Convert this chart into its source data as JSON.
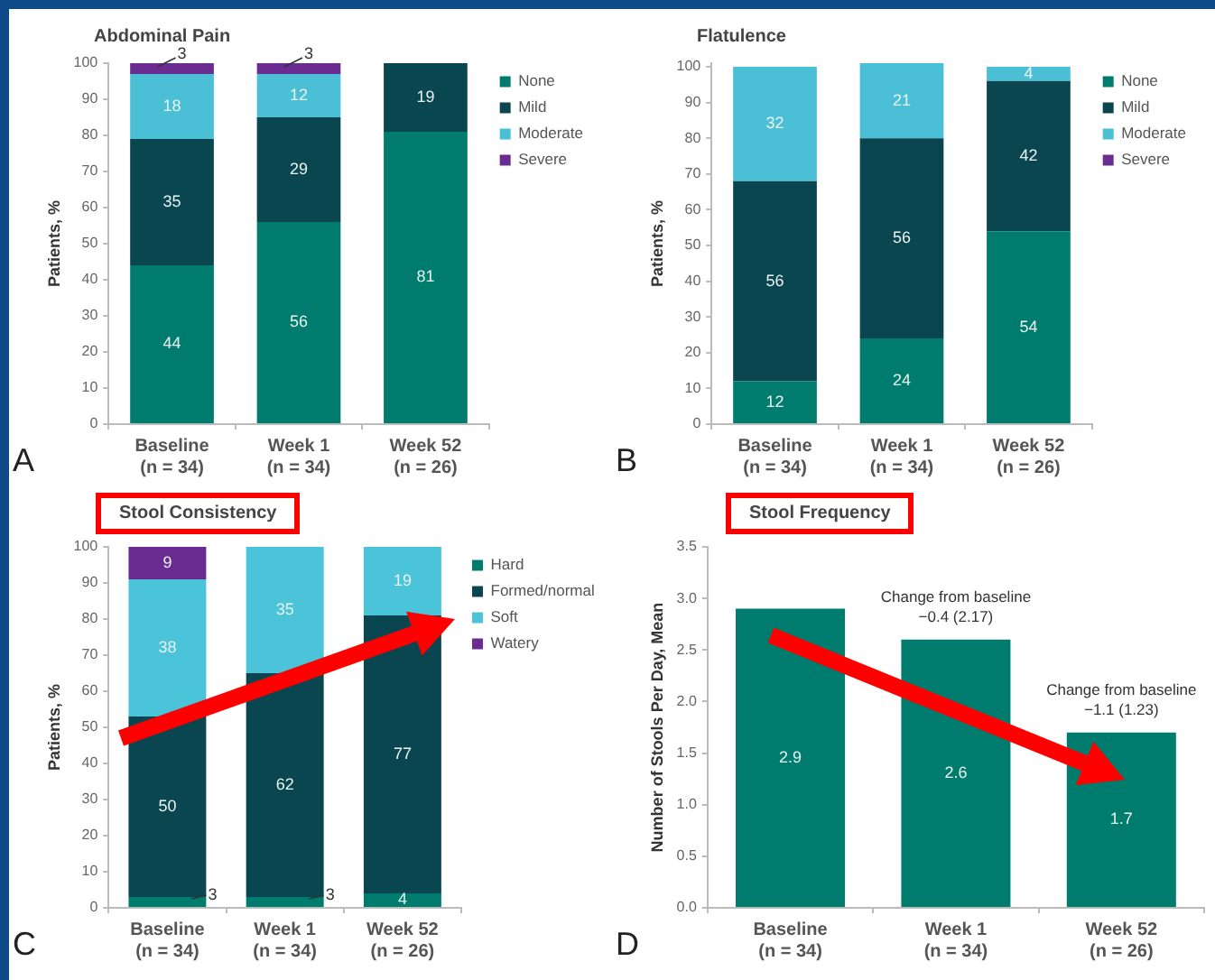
{
  "chart_data": [
    {
      "type": "bar",
      "title": "Abdominal Pain",
      "ylabel": "Patients, %",
      "categories": [
        "Baseline\n(n = 34)",
        "Week 1\n(n = 34)",
        "Week 52\n(n = 26)"
      ],
      "stacked": true,
      "ylim": [
        0,
        100
      ],
      "yticks": [
        0,
        10,
        20,
        30,
        40,
        50,
        60,
        70,
        80,
        90,
        100
      ],
      "grid": false,
      "legend": "top right",
      "annotations": [
        {
          "text": "3",
          "x": "Baseline\n(n = 34)",
          "y": 100
        },
        {
          "text": "3",
          "x": "Week 1\n(n = 34)",
          "y": 100
        },
        "A"
      ],
      "series": [
        {
          "name": "None",
          "color": "#007c6e",
          "values": [
            44,
            56,
            81
          ],
          "value_labels": [
            "44",
            "56",
            "81"
          ]
        },
        {
          "name": "Mild",
          "color": "#0a4650",
          "values": [
            35,
            29,
            19
          ],
          "value_labels": [
            "35",
            "29",
            "19"
          ]
        },
        {
          "name": "Moderate",
          "color": "#4bbfd6",
          "values": [
            18,
            12,
            null
          ],
          "value_labels": [
            "18",
            "12",
            null
          ]
        },
        {
          "name": "Severe",
          "color": "#6a2c91",
          "values": [
            3,
            3,
            null
          ],
          "value_labels": [
            null,
            null,
            null
          ]
        }
      ]
    },
    {
      "type": "bar",
      "title": "Flatulence",
      "ylabel": "Patients, %",
      "categories": [
        "Baseline\n(n = 34)",
        "Week 1\n(n = 34)",
        "Week 52\n(n = 26)"
      ],
      "stacked": true,
      "ylim": [
        0,
        101
      ],
      "yticks": [
        0,
        10,
        20,
        30,
        40,
        50,
        60,
        70,
        80,
        90,
        100
      ],
      "grid": false,
      "legend": "top right",
      "data_labels": true,
      "annotations": [
        "B"
      ],
      "series": [
        {
          "name": "None",
          "color": "#007c6e",
          "values": [
            12,
            24,
            54
          ]
        },
        {
          "name": "Mild",
          "color": "#0a4650",
          "values": [
            56,
            56,
            42
          ]
        },
        {
          "name": "Moderate",
          "color": "#4bbfd6",
          "values": [
            32,
            21,
            4
          ]
        },
        {
          "name": "Severe",
          "color": "#6a2c91",
          "values": [
            null,
            null,
            null
          ]
        }
      ]
    },
    {
      "type": "bar",
      "title": "Stool Consistency",
      "ylabel": "Patients, %",
      "categories": [
        "Baseline\n(n = 34)",
        "Week 1\n(n = 34)",
        "Week 52\n(n = 26)"
      ],
      "stacked": true,
      "ylim": [
        0,
        100
      ],
      "yticks": [
        0,
        10,
        20,
        30,
        40,
        50,
        60,
        70,
        80,
        90,
        100
      ],
      "grid": false,
      "legend": "top right",
      "annotations": [
        {
          "text": "3",
          "x": "Baseline\n(n = 34)",
          "y": 3
        },
        {
          "text": "3",
          "x": "Week 1\n(n = 34)",
          "y": 3
        },
        "C"
      ],
      "series": [
        {
          "name": "Hard",
          "color": "#007c6e",
          "values": [
            3,
            3,
            4
          ],
          "value_labels": [
            null,
            null,
            "4"
          ]
        },
        {
          "name": "Formed/normal",
          "color": "#0a4650",
          "values": [
            50,
            62,
            77
          ],
          "value_labels": [
            "50",
            "62",
            "77"
          ]
        },
        {
          "name": "Soft",
          "color": "#4bc3d9",
          "values": [
            38,
            35,
            19
          ],
          "value_labels": [
            "38",
            "35",
            "19"
          ]
        },
        {
          "name": "Watery",
          "color": "#6a2c91",
          "values": [
            9,
            null,
            null
          ],
          "value_labels": [
            "9",
            null,
            null
          ]
        }
      ]
    },
    {
      "type": "bar",
      "title": "Stool Frequency",
      "ylabel": "Number of Stools Per Day, Mean",
      "categories": [
        "Baseline\n(n = 34)",
        "Week 1\n(n = 34)",
        "Week 52\n(n = 26)"
      ],
      "values": [
        2.9,
        2.6,
        1.7
      ],
      "color": "#007c6e",
      "ylim": [
        0,
        3.5
      ],
      "yticks": [
        {
          "value": 0,
          "label": "0.0"
        },
        0.5,
        {
          "value": 1,
          "label": "1.0"
        },
        1.5,
        {
          "value": 2,
          "label": "2.0"
        },
        2.5,
        {
          "value": 3,
          "label": "3.0"
        },
        3.5
      ],
      "grid": false,
      "data_labels": true,
      "annotations": [
        {
          "text": "Change from baseline\n−0.4 (2.17)",
          "x": "Week 1\n(n = 34)",
          "y": 2.6
        },
        {
          "text": "Change from baseline\n−1.1 (1.23)",
          "x": "Week 52\n(n = 26)",
          "y": 1.7
        },
        "D"
      ]
    }
  ]
}
